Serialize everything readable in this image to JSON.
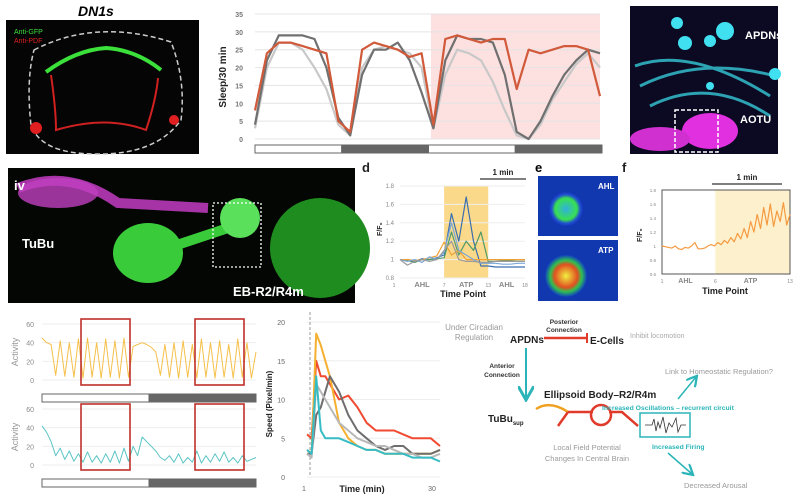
{
  "panel_dn1s": {
    "title": "DN1s",
    "label_gfp": "Anti-GFP",
    "label_pdf": "Anti-PDF"
  },
  "panel_apdn": {
    "label_apdns": "APDNs",
    "label_aotu": "AOTU"
  },
  "panel_iv": {
    "label": "iv",
    "label_tubu": "TuBu",
    "label_eb": "EB-R2/R4m"
  },
  "panel_d": {
    "letter": "d",
    "scale": "1 min",
    "ylabel": "F/F₀",
    "xlabel": "Time Point",
    "xticks": [
      "1",
      "7",
      "13",
      "18"
    ],
    "yticks": [
      "0.8",
      "1",
      "1.2",
      "1.4",
      "1.6",
      "1.8"
    ],
    "region_labels": [
      "AHL",
      "ATP",
      "AHL"
    ]
  },
  "panel_e": {
    "letter": "e",
    "label_top": "AHL",
    "label_bottom": "ATP"
  },
  "panel_f": {
    "letter": "f",
    "scale": "1 min",
    "ylabel": "F/F₀",
    "xlabel": "Time Point",
    "xticks": [
      "1",
      "6",
      "13"
    ],
    "yticks": [
      "0.6",
      "0.8",
      "1",
      "1.2",
      "1.4",
      "1.6",
      "1.8"
    ],
    "region_labels": [
      "AHL",
      "ATP"
    ]
  },
  "diagram": {
    "under_circadian": [
      "Under Circadian",
      "Regulation"
    ],
    "posterior": [
      "Posterior",
      "Connection"
    ],
    "apdns": "APDNs",
    "ecells": "E-Cells",
    "inhibit": "Inhibit locomotion",
    "anterior": [
      "Anterior",
      "Connection"
    ],
    "eb": "Ellipsoid Body–R2/R4m",
    "tubu": "TuBu",
    "tubu_sub": "sup",
    "oscillations": "Increased Oscillations – recurrent circuit",
    "firing": "Increased Firing",
    "homeostatic": "Link to Homeostatic Regulation?",
    "lfp": [
      "Local Field Potential",
      "Changes In Central Brain"
    ],
    "arousal": "Decreased Arousal",
    "colors": {
      "teal": "#2bb5b8",
      "red": "#e03a2a",
      "orange": "#f0a020",
      "grey": "#8a8a8a"
    }
  },
  "chart_data": [
    {
      "id": "sleep",
      "type": "line",
      "ylabel": "Sleep/30 min",
      "ylim": [
        0,
        35
      ],
      "yticks": [
        0,
        5,
        10,
        15,
        20,
        25,
        30,
        35
      ],
      "grid": true,
      "shaded_region": {
        "from_fraction": 0.51,
        "color": "#fde0e0"
      },
      "light_dark_bar": [
        "light",
        "dark",
        "light",
        "dark"
      ],
      "series": [
        {
          "color": "#d05a3a",
          "values": [
            8,
            24,
            27,
            27,
            26,
            25,
            24,
            5,
            2,
            25,
            27,
            26,
            25,
            23,
            24,
            4,
            28,
            29,
            28,
            27,
            28,
            28,
            14,
            25,
            24,
            25,
            26,
            26,
            25,
            12
          ]
        },
        {
          "color": "#707070",
          "values": [
            4,
            22,
            29,
            29,
            29,
            28,
            20,
            6,
            1,
            18,
            25,
            25,
            27,
            22,
            13,
            3,
            22,
            29,
            28,
            28,
            27,
            18,
            2,
            0,
            5,
            12,
            18,
            22,
            25,
            24
          ]
        },
        {
          "color": "#c8c8c8",
          "values": [
            3,
            20,
            27,
            27,
            25,
            20,
            14,
            4,
            1,
            20,
            25,
            26,
            25,
            24,
            20,
            3,
            18,
            25,
            24,
            22,
            16,
            8,
            1,
            0,
            4,
            11,
            16,
            21,
            24,
            20
          ]
        }
      ]
    },
    {
      "id": "activity_top",
      "type": "line",
      "ylabel": "Activity",
      "ylim": [
        0,
        60
      ],
      "yticks": [
        0,
        20,
        40,
        60
      ],
      "light_dark_bar": [
        "light",
        "dark"
      ],
      "series": [
        {
          "color": "#f5c04a",
          "values": [
            45,
            40,
            38,
            5,
            42,
            4,
            40,
            3,
            44,
            2,
            45,
            3,
            40,
            2,
            44,
            3,
            42,
            2,
            45,
            3,
            36,
            38,
            40,
            38,
            35,
            30,
            5,
            38,
            3,
            40,
            2,
            42,
            3,
            38,
            2,
            44,
            3,
            40,
            2,
            42,
            3,
            38,
            2,
            44,
            3,
            40,
            2,
            30
          ]
        }
      ]
    },
    {
      "id": "activity_bottom",
      "type": "line",
      "ylabel": "Activity",
      "ylim": [
        0,
        60
      ],
      "yticks": [
        0,
        20,
        40,
        60
      ],
      "light_dark_bar": [
        "light",
        "dark"
      ],
      "series": [
        {
          "color": "#5cc4c4",
          "values": [
            42,
            35,
            25,
            10,
            18,
            6,
            15,
            4,
            12,
            3,
            14,
            3,
            10,
            2,
            12,
            3,
            15,
            2,
            18,
            4,
            20,
            10,
            30,
            25,
            20,
            15,
            8,
            5,
            10,
            3,
            12,
            2,
            8,
            3,
            15,
            2,
            10,
            3,
            12,
            4,
            14,
            3,
            8,
            2,
            10,
            4,
            6,
            8
          ]
        }
      ]
    },
    {
      "id": "speed",
      "type": "line",
      "xlabel": "Time (min)",
      "ylabel": "Speed (Pixel/min)",
      "xlim": [
        1,
        30
      ],
      "ylim": [
        0,
        20
      ],
      "xticks": [
        "1",
        "30"
      ],
      "yticks": [
        0,
        5,
        10,
        15,
        20
      ],
      "grid": true,
      "x": [
        1,
        2,
        3,
        4,
        5,
        6,
        7,
        8,
        10,
        12,
        14,
        16,
        18,
        20,
        22,
        24,
        26,
        28,
        30
      ],
      "series": [
        {
          "color": "#f04a30",
          "values": [
            5.5,
            5,
            15,
            13,
            13,
            12,
            11,
            10,
            10.5,
            9,
            7,
            6,
            6,
            6,
            5.5,
            5,
            5,
            5,
            4
          ]
        },
        {
          "color": "#f5b030",
          "values": [
            3.5,
            3,
            18.5,
            17,
            15,
            13,
            10,
            7,
            5,
            4,
            3.5,
            3.5,
            3,
            3,
            3,
            3,
            3,
            3,
            3.5
          ]
        },
        {
          "color": "#6e6e6e",
          "values": [
            3,
            3,
            8,
            9,
            11,
            13,
            12,
            11,
            8,
            6,
            5,
            4,
            3.5,
            4,
            4,
            3,
            3,
            3,
            3.5
          ]
        },
        {
          "color": "#b8b8b8",
          "values": [
            3,
            2.5,
            12,
            11,
            10,
            9,
            8,
            7,
            6,
            5,
            4.5,
            4,
            4,
            3.5,
            3,
            3,
            2.5,
            2.5,
            3
          ]
        },
        {
          "color": "#35bcc4",
          "values": [
            3.5,
            3,
            13,
            6,
            5,
            5,
            5,
            5,
            4.5,
            4,
            3.5,
            3.5,
            3,
            3,
            3,
            2.5,
            2.5,
            2.5,
            2
          ]
        }
      ]
    },
    {
      "id": "calcium_d",
      "type": "line",
      "xlim": [
        1,
        18
      ],
      "ylim": [
        0.8,
        1.8
      ],
      "shaded_region": {
        "from": 7,
        "to": 13,
        "color": "#fbd98a"
      },
      "series": [
        {
          "color": "#3a6fb0",
          "values": [
            1,
            1,
            0.98,
            1.01,
            1,
            1.02,
            1.05,
            1.5,
            1.2,
            1.68,
            1.2,
            0.93,
            0.93,
            0.92,
            0.92,
            0.92,
            0.92,
            0.92
          ]
        },
        {
          "color": "#4f9a6a",
          "values": [
            1,
            0.99,
            0.97,
            1,
            1,
            1.01,
            1.02,
            1.3,
            1.05,
            1.2,
            1.1,
            1.3,
            0.98,
            0.98,
            0.99,
            0.99,
            1,
            1
          ]
        },
        {
          "color": "#f0a030",
          "values": [
            1,
            1,
            0.99,
            1,
            1.02,
            1.04,
            1.19,
            1.05,
            1.1,
            1,
            1,
            1,
            1,
            1,
            1,
            1,
            1,
            1
          ]
        },
        {
          "color": "#7aa8d8",
          "values": [
            1,
            0.98,
            1,
            0.97,
            1.03,
            1,
            1.08,
            1.4,
            1.1,
            1.05,
            1,
            0.96,
            0.96,
            0.96,
            0.95,
            0.95,
            0.96,
            0.96
          ]
        },
        {
          "color": "#9a9a9a",
          "values": [
            1,
            0.94,
            0.98,
            1,
            0.98,
            1,
            1.1,
            1.2,
            1,
            0.98,
            0.98,
            0.97,
            0.97,
            0.98,
            0.98,
            0.98,
            0.98,
            0.98
          ]
        }
      ]
    },
    {
      "id": "calcium_f",
      "type": "line",
      "xlim": [
        1,
        13
      ],
      "ylim": [
        0.6,
        1.8
      ],
      "shaded_region": {
        "from": 6,
        "to": 13,
        "color": "#fdf0cc"
      },
      "series": [
        {
          "color": "#f59a40",
          "values": [
            1,
            0.99,
            0.98,
            0.97,
            1,
            0.96,
            0.95,
            0.98,
            0.97,
            1,
            1.05,
            0.96,
            0.96,
            0.97,
            1,
            1.02,
            1,
            1.05,
            1.02,
            1.08,
            1.04,
            1.12,
            1.06,
            1.18,
            1.1,
            1.25,
            1.12,
            1.35,
            1.2,
            1.45,
            1.25,
            1.55,
            1.3,
            1.6,
            1.28,
            1.5,
            1.35,
            1.62,
            1.3,
            1.45
          ]
        }
      ]
    }
  ]
}
